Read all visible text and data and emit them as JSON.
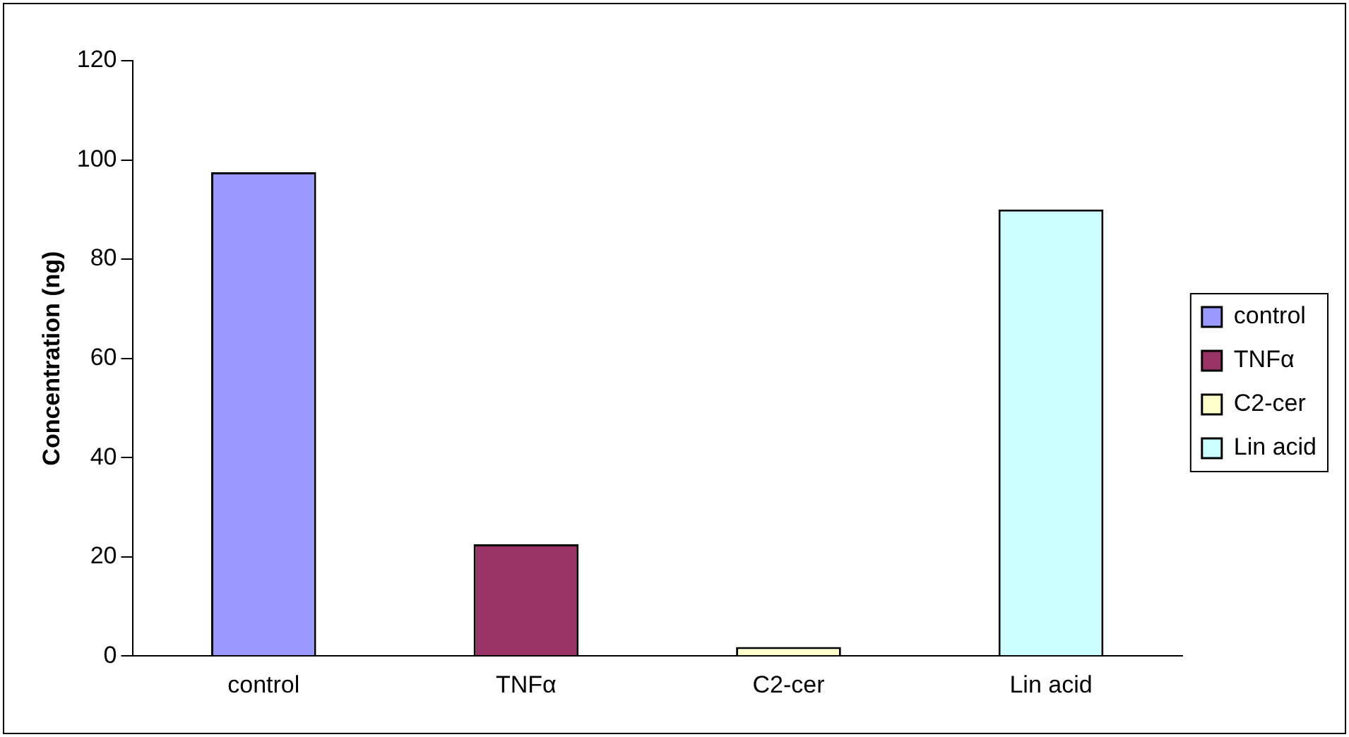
{
  "chart_data": {
    "type": "bar",
    "ylabel": "Concentration (ng)",
    "categories": [
      "control",
      "TNFα",
      "C2-cer",
      "Lin acid"
    ],
    "series": [
      {
        "name": "control",
        "color": "#9999ff",
        "values": [
          97.5,
          null,
          null,
          null
        ]
      },
      {
        "name": "TNFα",
        "color": "#993366",
        "values": [
          null,
          22.5,
          null,
          null
        ]
      },
      {
        "name": "C2-cer",
        "color": "#ffffcc",
        "values": [
          null,
          null,
          1.8,
          null
        ]
      },
      {
        "name": "Lin acid",
        "color": "#ccffff",
        "values": [
          null,
          null,
          null,
          90
        ]
      }
    ],
    "ylim": [
      0,
      120
    ],
    "yticks": [
      0,
      20,
      40,
      60,
      80,
      100,
      120
    ],
    "grid": false,
    "legend": "right"
  }
}
